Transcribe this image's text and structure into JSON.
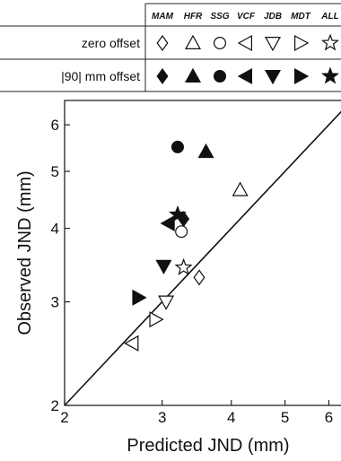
{
  "legend": {
    "methods": [
      "MAM",
      "HFR",
      "SSG",
      "VCF",
      "JDB",
      "MDT",
      "ALL"
    ],
    "rows": [
      "zero offset",
      "|90| mm offset"
    ],
    "symbols": [
      "diamond",
      "triangle-up",
      "circle",
      "triangle-left",
      "triangle-down",
      "triangle-right",
      "star"
    ]
  },
  "chart_data": {
    "type": "scatter",
    "scale": "log-log",
    "xlabel": "Predicted JND (mm)",
    "ylabel": "Observed JND (mm)",
    "xlim": [
      2,
      6.6
    ],
    "ylim": [
      2,
      6.6
    ],
    "xticks": [
      2,
      3,
      4,
      5,
      6
    ],
    "yticks": [
      2,
      3,
      4,
      5,
      6
    ],
    "reference_line": "y = x",
    "points": [
      {
        "method": "MAM",
        "offset": "zero offset",
        "symbol": "diamond",
        "filled": false,
        "x": 3.5,
        "y": 3.3
      },
      {
        "method": "HFR",
        "offset": "zero offset",
        "symbol": "triangle-up",
        "filled": false,
        "x": 4.15,
        "y": 4.65
      },
      {
        "method": "SSG",
        "offset": "zero offset",
        "symbol": "circle",
        "filled": false,
        "x": 3.25,
        "y": 3.95
      },
      {
        "method": "VCF",
        "offset": "zero offset",
        "symbol": "triangle-left",
        "filled": false,
        "x": 2.65,
        "y": 2.55
      },
      {
        "method": "JDB",
        "offset": "zero offset",
        "symbol": "triangle-down",
        "filled": false,
        "x": 3.05,
        "y": 3.0
      },
      {
        "method": "MDT",
        "offset": "zero offset",
        "symbol": "triangle-right",
        "filled": false,
        "x": 2.92,
        "y": 2.8
      },
      {
        "method": "ALL",
        "offset": "zero offset",
        "symbol": "star",
        "filled": false,
        "x": 3.28,
        "y": 3.43
      },
      {
        "method": "MAM",
        "offset": "|90| mm offset",
        "symbol": "diamond",
        "filled": true,
        "x": 3.28,
        "y": 4.15
      },
      {
        "method": "HFR",
        "offset": "|90| mm offset",
        "symbol": "triangle-up",
        "filled": true,
        "x": 3.6,
        "y": 5.4
      },
      {
        "method": "SSG",
        "offset": "|90| mm offset",
        "symbol": "circle",
        "filled": true,
        "x": 3.2,
        "y": 5.5
      },
      {
        "method": "VCF",
        "offset": "|90| mm offset",
        "symbol": "triangle-left",
        "filled": true,
        "x": 3.08,
        "y": 4.08
      },
      {
        "method": "JDB",
        "offset": "|90| mm offset",
        "symbol": "triangle-down",
        "filled": true,
        "x": 3.02,
        "y": 3.45
      },
      {
        "method": "MDT",
        "offset": "|90| mm offset",
        "symbol": "triangle-right",
        "filled": true,
        "x": 2.72,
        "y": 3.05
      },
      {
        "method": "ALL",
        "offset": "|90| mm offset",
        "symbol": "star",
        "filled": true,
        "x": 3.2,
        "y": 4.22
      }
    ]
  }
}
